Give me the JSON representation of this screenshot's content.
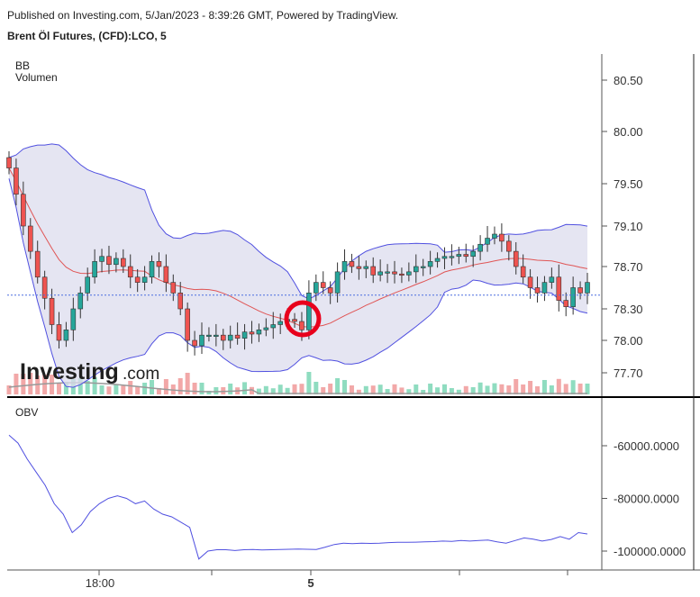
{
  "header": {
    "published": "Published on Investing.com, 5/Jan/2023 - 8:39:26 GMT, Powered by TradingView.",
    "symbol": "Brent Öl Futures, (CFD):LCO, 5"
  },
  "indicators": {
    "bb": "BB",
    "volume": "Volumen",
    "obv": "OBV"
  },
  "watermark": {
    "brand": "Investing",
    "suffix": ".com"
  },
  "colors": {
    "up": "#26a69a",
    "down": "#ef5350",
    "band_fill": "#dcdcee",
    "band_line": "#5050e0",
    "basis": "#e05555",
    "obv": "#5050e0",
    "marker": "#e8001c",
    "vol_up": "#8fdcc0",
    "vol_down": "#f2a8a8",
    "vol_ma": "#999999"
  },
  "chart_data": [
    {
      "type": "candlestick",
      "title": "Brent Öl Futures, (CFD):LCO, 5",
      "indicators": [
        "BB",
        "Volumen"
      ],
      "y_ticks": [
        "80.50",
        "80.00",
        "79.50",
        "79.10",
        "78.70",
        "78.30",
        "78.00",
        "77.70"
      ],
      "x_ticks": [
        "18:00",
        "5"
      ],
      "current_price_line": 78.43,
      "close_series": [
        79.65,
        79.4,
        79.1,
        78.85,
        78.6,
        78.4,
        78.15,
        78.0,
        78.1,
        78.3,
        78.45,
        78.6,
        78.75,
        78.8,
        78.72,
        78.78,
        78.7,
        78.6,
        78.55,
        78.6,
        78.75,
        78.7,
        78.55,
        78.45,
        78.3,
        78.0,
        77.95,
        78.05,
        78.05,
        78.05,
        78.0,
        78.05,
        78.02,
        78.08,
        78.06,
        78.1,
        78.12,
        78.15,
        78.18,
        78.2,
        78.18,
        78.1,
        78.45,
        78.55,
        78.5,
        78.45,
        78.65,
        78.75,
        78.7,
        78.68,
        78.7,
        78.62,
        78.65,
        78.65,
        78.63,
        78.62,
        78.65,
        78.7,
        78.7,
        78.75,
        78.78,
        78.8,
        78.8,
        78.82,
        78.8,
        78.85,
        78.92,
        78.98,
        79.02,
        78.95,
        78.85,
        78.7,
        78.6,
        78.5,
        78.45,
        78.55,
        78.6,
        78.38,
        78.32,
        78.5,
        78.45,
        78.55
      ]
    },
    {
      "type": "line",
      "title": "OBV",
      "y_ticks": [
        "-60000.0000",
        "-80000.0000",
        "-100000.0000"
      ],
      "series": [
        {
          "values": [
            -56000,
            -59000,
            -65000,
            -70000,
            -75000,
            -82000,
            -86000,
            -93000,
            -90000,
            -85000,
            -82000,
            -80000,
            -79000,
            -80000,
            -82000,
            -81000,
            -84000,
            -86000,
            -87000,
            -89000,
            -91000,
            -103000,
            -100000,
            -99500,
            -99500,
            -99800,
            -99500,
            -99400,
            -99600,
            -99500,
            -99400,
            -99300,
            -99200,
            -99300,
            -99400,
            -98500,
            -97500,
            -97000,
            -97200,
            -97000,
            -97100,
            -97000,
            -96800,
            -96700,
            -96700,
            -96600,
            -96500,
            -96400,
            -96200,
            -96300,
            -96000,
            -96200,
            -96000,
            -95800,
            -96500,
            -97000,
            -96000,
            -95000,
            -95500,
            -96200,
            -95600,
            -94500,
            -95500,
            -93000,
            -93500
          ]
        }
      ]
    }
  ]
}
